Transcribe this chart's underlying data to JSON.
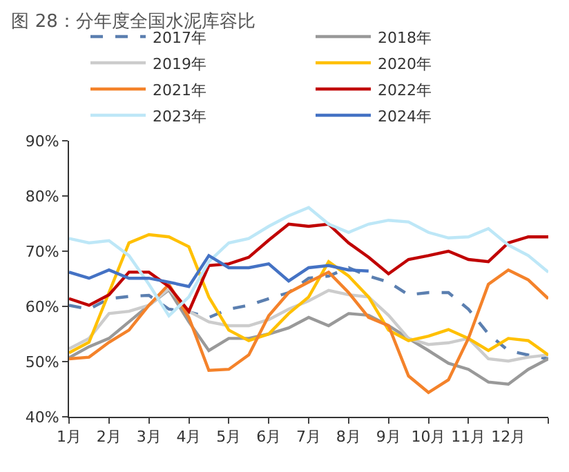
{
  "chart_data": {
    "type": "line",
    "title": "图 28：分年度全国水泥库容比",
    "x": [
      1,
      1.5,
      2,
      2.5,
      3,
      3.5,
      4,
      4.5,
      5,
      5.5,
      6,
      6.5,
      7,
      7.5,
      8,
      8.5,
      9,
      9.5,
      10,
      10.5,
      11,
      11.5,
      12,
      12.5,
      13
    ],
    "series": [
      {
        "name": "2017年",
        "color": "#5b7fb0",
        "line_style": "dashed",
        "values": [
          60.2,
          59.5,
          61.4,
          61.8,
          62,
          59.5,
          59,
          58,
          59.5,
          60.2,
          61.4,
          62.5,
          65.1,
          65.5,
          67,
          65.5,
          64.4,
          62.1,
          62.5,
          62.5,
          59.5,
          55,
          52,
          51.2,
          50.5
        ]
      },
      {
        "name": "2018年",
        "color": "#999999",
        "values": [
          50.7,
          52.7,
          54.2,
          57.2,
          60.2,
          63,
          57.2,
          52,
          54.2,
          54.2,
          55,
          56.1,
          58,
          56.5,
          58.7,
          58.4,
          56.5,
          54.2,
          52,
          49.7,
          48.6,
          46.3,
          45.9,
          48.6,
          50.5
        ]
      },
      {
        "name": "2019年",
        "color": "#cccccc",
        "values": [
          52.3,
          54.2,
          58.7,
          59.1,
          60.2,
          63.2,
          59.1,
          57.2,
          56.5,
          56.5,
          57.6,
          59.5,
          61,
          62.9,
          62.1,
          61.7,
          58.4,
          54.2,
          53.1,
          53.4,
          54.2,
          50.5,
          50.1,
          50.8,
          51.2
        ]
      },
      {
        "name": "2020年",
        "color": "#ffc000",
        "values": [
          51.6,
          53.5,
          62.5,
          71.5,
          73,
          72.6,
          70.8,
          61.7,
          55.7,
          53.8,
          55,
          58.7,
          61.7,
          68.1,
          65.5,
          61.7,
          55.7,
          53.8,
          54.6,
          55.8,
          54.2,
          52,
          54.2,
          53.8,
          51.2
        ]
      },
      {
        "name": "2021年",
        "color": "#f4822a",
        "values": [
          50.5,
          50.8,
          53.5,
          55.7,
          60.2,
          64,
          58,
          48.4,
          48.6,
          51.2,
          58.3,
          62.5,
          64.4,
          66.2,
          62.5,
          58,
          56.5,
          47.4,
          44.4,
          46.7,
          54.2,
          64,
          66.6,
          64.8,
          61.4
        ]
      },
      {
        "name": "2022年",
        "color": "#c00000",
        "values": [
          61.4,
          60.2,
          62.1,
          66.2,
          66.2,
          63.6,
          59.1,
          67.4,
          67.7,
          68.9,
          72,
          74.9,
          74.5,
          74.9,
          71.5,
          68.9,
          65.9,
          68.5,
          69.2,
          70,
          68.5,
          68.1,
          71.5,
          72.6,
          72.6
        ]
      },
      {
        "name": "2023年",
        "color": "#bde7f7",
        "values": [
          72.3,
          71.5,
          71.9,
          69.2,
          64,
          58.3,
          61.7,
          68.1,
          71.5,
          72.3,
          74.5,
          76.4,
          77.9,
          74.9,
          73.4,
          74.9,
          75.6,
          75.3,
          73.4,
          72.4,
          72.6,
          74.1,
          71.1,
          69.2,
          66.2
        ]
      },
      {
        "name": "2024年",
        "color": "#4472c4",
        "values": [
          66.2,
          65.1,
          66.6,
          65.1,
          65.1,
          64.4,
          63.6,
          69.2,
          67,
          67,
          67.7,
          64.6,
          67,
          67.4,
          66.6,
          66.4,
          null,
          null,
          null,
          null,
          null,
          null,
          null,
          null,
          null
        ]
      }
    ],
    "xlim": [
      1,
      13
    ],
    "xticks": [
      {
        "value": 1,
        "label": "1月"
      },
      {
        "value": 2,
        "label": "2月"
      },
      {
        "value": 3,
        "label": "3月"
      },
      {
        "value": 4,
        "label": "4月"
      },
      {
        "value": 5,
        "label": "5月"
      },
      {
        "value": 6,
        "label": "6月"
      },
      {
        "value": 7,
        "label": "7月"
      },
      {
        "value": 8,
        "label": "8月"
      },
      {
        "value": 9,
        "label": "9月"
      },
      {
        "value": 10,
        "label": "10月"
      },
      {
        "value": 11,
        "label": "11月"
      },
      {
        "value": 12,
        "label": "12月"
      },
      {
        "value": 13,
        "label": null
      }
    ],
    "ylim": [
      40,
      90
    ],
    "yticks": [
      {
        "value": 40,
        "label": "40%"
      },
      {
        "value": 50,
        "label": "50%"
      },
      {
        "value": 60,
        "label": "60%"
      },
      {
        "value": 70,
        "label": "70%"
      },
      {
        "value": 80,
        "label": "80%"
      },
      {
        "value": 90,
        "label": "90%"
      }
    ],
    "legend": "top",
    "marker": "none",
    "line_style": "solid"
  }
}
